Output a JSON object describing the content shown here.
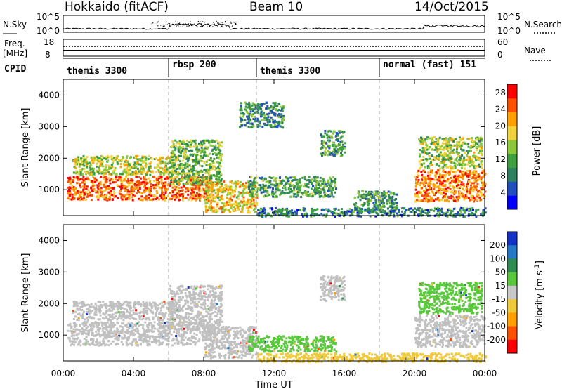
{
  "header": {
    "radar_title": "Hokkaido (fitACF)",
    "beam_title": "Beam 10",
    "date_title": "14/Oct/2015"
  },
  "noise_panel": {
    "left_label": "N.Sky",
    "right_label": "N.Search",
    "left_ticks": [
      "10^5",
      "10^0"
    ],
    "right_ticks": [
      "10^5",
      "10^0"
    ]
  },
  "freq_panel": {
    "left_label_top": "Freq.",
    "left_label_units": "[MHz]",
    "left_ticks": [
      "18",
      "8"
    ],
    "right_label": "Nave",
    "right_ticks": [
      "60",
      "0"
    ]
  },
  "cpid_panel": {
    "label": "CPID",
    "segments": [
      {
        "name": "themis 3300",
        "start_hour": 0,
        "end_hour": 6
      },
      {
        "name": "rbsp 200",
        "start_hour": 6,
        "end_hour": 11
      },
      {
        "name": "themis 3300",
        "start_hour": 11,
        "end_hour": 18
      },
      {
        "name": "normal (fast) 151",
        "start_hour": 18,
        "end_hour": 24
      }
    ]
  },
  "chart_data": [
    {
      "type": "heatmap",
      "title": "Power",
      "ylabel": "Slant Range [km]",
      "xlabel": "Time UT",
      "xlim_hours": [
        0,
        24
      ],
      "ylim_km": [
        180,
        4500
      ],
      "y_ticks": [
        1000,
        2000,
        3000,
        4000
      ],
      "x_tick_labels": [
        "00:00",
        "04:00",
        "08:00",
        "12:00",
        "16:00",
        "20:00",
        "00:00"
      ],
      "x_tick_hours": [
        0,
        4,
        8,
        12,
        16,
        20,
        24
      ],
      "colorbar_label": "Power [dB]",
      "colorbar_ticks": [
        4,
        8,
        12,
        16,
        20,
        24,
        28
      ],
      "colorbar_range": [
        0,
        30
      ],
      "colorbar_colors": [
        "#0000ff",
        "#2050c0",
        "#2d8060",
        "#3ea03e",
        "#8cc83c",
        "#f0d23c",
        "#ffa000",
        "#ff5000",
        "#ff0000"
      ],
      "echo_regions": [
        {
          "t0": 0.2,
          "t1": 8.5,
          "r0": 700,
          "r1": 1450,
          "level": 0.85
        },
        {
          "t0": 0.5,
          "t1": 6.5,
          "r0": 1500,
          "r1": 2100,
          "level": 0.55
        },
        {
          "t0": 6.0,
          "t1": 9.0,
          "r0": 1200,
          "r1": 2600,
          "level": 0.45
        },
        {
          "t0": 8.0,
          "t1": 11.0,
          "r0": 300,
          "r1": 1300,
          "level": 0.65
        },
        {
          "t0": 10.5,
          "t1": 15.5,
          "r0": 800,
          "r1": 1450,
          "level": 0.35
        },
        {
          "t0": 10.0,
          "t1": 12.5,
          "r0": 3000,
          "r1": 3800,
          "level": 0.3
        },
        {
          "t0": 14.6,
          "t1": 16.0,
          "r0": 2100,
          "r1": 2900,
          "level": 0.35
        },
        {
          "t0": 16.5,
          "t1": 19.0,
          "r0": 350,
          "r1": 1000,
          "level": 0.35
        },
        {
          "t0": 20.0,
          "t1": 24.0,
          "r0": 650,
          "r1": 1650,
          "level": 0.8
        },
        {
          "t0": 20.2,
          "t1": 23.8,
          "r0": 1700,
          "r1": 2700,
          "level": 0.5
        },
        {
          "t0": 11.0,
          "t1": 24.0,
          "r0": 180,
          "r1": 450,
          "level": 0.25
        }
      ]
    },
    {
      "type": "heatmap",
      "title": "Velocity",
      "ylabel": "Slant Range [km]",
      "xlabel": "Time UT",
      "xlim_hours": [
        0,
        24
      ],
      "ylim_km": [
        180,
        4500
      ],
      "y_ticks": [
        1000,
        2000,
        3000,
        4000
      ],
      "x_tick_labels": [
        "00:00",
        "04:00",
        "08:00",
        "12:00",
        "16:00",
        "20:00",
        "00:00"
      ],
      "x_tick_hours": [
        0,
        4,
        8,
        12,
        16,
        20,
        24
      ],
      "colorbar_label": "Velocity [m s^-1]",
      "colorbar_ticks": [
        200,
        100,
        50,
        15,
        -15,
        -50,
        -100,
        -200
      ],
      "colorbar_colors": [
        "#1432c8",
        "#2878c8",
        "#2d8c50",
        "#5ac83c",
        "#c8c8c8",
        "#f0c83c",
        "#ffa000",
        "#ff5000",
        "#ff0000"
      ],
      "echo_regions": [
        {
          "t0": 0.2,
          "t1": 8.5,
          "r0": 700,
          "r1": 1450,
          "class": "ground_scatter"
        },
        {
          "t0": 0.5,
          "t1": 6.5,
          "r0": 1500,
          "r1": 2100,
          "class": "ground_scatter"
        },
        {
          "t0": 6.0,
          "t1": 9.0,
          "r0": 1200,
          "r1": 2600,
          "class": "ground_scatter"
        },
        {
          "t0": 8.0,
          "t1": 11.0,
          "r0": 300,
          "r1": 1300,
          "class": "ground_scatter"
        },
        {
          "t0": 10.5,
          "t1": 15.5,
          "r0": 500,
          "r1": 1000,
          "class": "positive_15_50"
        },
        {
          "t0": 14.6,
          "t1": 16.0,
          "r0": 2100,
          "r1": 2900,
          "class": "ground_scatter"
        },
        {
          "t0": 20.0,
          "t1": 24.0,
          "r0": 650,
          "r1": 1650,
          "class": "ground_scatter"
        },
        {
          "t0": 20.2,
          "t1": 23.8,
          "r0": 1700,
          "r1": 2700,
          "class": "positive_15_50"
        },
        {
          "t0": 11.0,
          "t1": 24.0,
          "r0": 180,
          "r1": 450,
          "class": "negative_15_50"
        }
      ]
    }
  ]
}
